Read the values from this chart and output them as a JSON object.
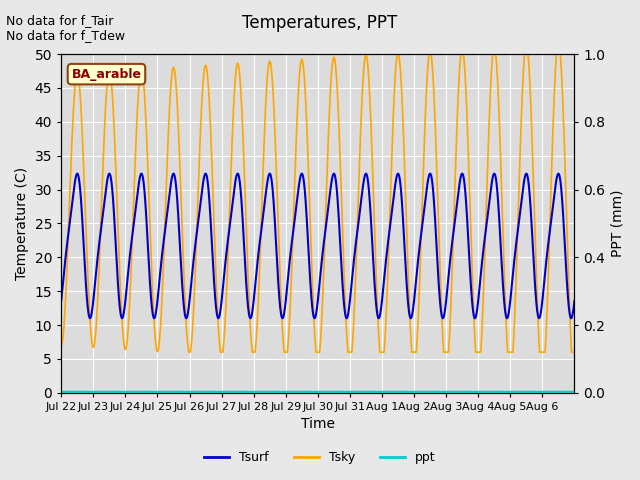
{
  "title": "Temperatures, PPT",
  "xlabel": "Time",
  "ylabel_left": "Temperature (C)",
  "ylabel_right": "PPT (mm)",
  "annotation_text": "No data for f_Tair\nNo data for f_Tdew",
  "box_label": "BA_arable",
  "ylim_left": [
    0,
    50
  ],
  "ylim_right": [
    0.0,
    1.0
  ],
  "yticks_left": [
    0,
    5,
    10,
    15,
    20,
    25,
    30,
    35,
    40,
    45,
    50
  ],
  "yticks_right": [
    0.0,
    0.2,
    0.4,
    0.6,
    0.8,
    1.0
  ],
  "bg_color": "#e8e8e8",
  "plot_bg_color": "#dcdcdc",
  "tsurf_color": "#0000cc",
  "tsky_color": "#ffa500",
  "ppt_color": "#00cccc",
  "grid_color": "white",
  "tick_label_dates": [
    "Jul 22",
    "Jul 23",
    "Jul 24",
    "Jul 25",
    "Jul 26",
    "Jul 27",
    "Jul 28",
    "Jul 29",
    "Jul 30",
    "Jul 31",
    "Aug 1",
    "Aug 2",
    "Aug 3",
    "Aug 4",
    "Aug 5",
    "Aug 6"
  ],
  "n_points": 1920
}
